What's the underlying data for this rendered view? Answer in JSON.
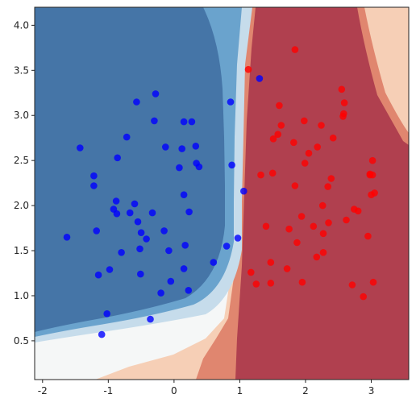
{
  "chart_data": {
    "type": "scatter",
    "title": "",
    "xlabel": "",
    "ylabel": "",
    "xlim": [
      -2.12,
      3.57
    ],
    "ylim": [
      0.07,
      4.2
    ],
    "grid": false,
    "legend": "none",
    "x_ticks": [
      "-2",
      "-1",
      "0",
      "1",
      "2",
      "3"
    ],
    "y_ticks": [
      "0.5",
      "1.0",
      "1.5",
      "2.0",
      "2.5",
      "3.0",
      "3.5",
      "4.0"
    ],
    "background": "decision-boundary contour (RdBu colormap)",
    "colors": {
      "class_0_points": "#0000ff",
      "class_1_points": "#ff0000",
      "region_class_0_strong": "#4575a7",
      "region_class_0_mid": "#6aa3cd",
      "region_class_0_light": "#c6dceb",
      "region_neutral": "#f5f7f7",
      "region_class_1_light": "#f6cfb6",
      "region_class_1_mid": "#e0866f",
      "region_class_1_strong": "#b0404f"
    },
    "series": [
      {
        "class": 0,
        "color": "#0000ff",
        "points": [
          [
            -1.43,
            2.64
          ],
          [
            -1.22,
            2.33
          ],
          [
            -1.22,
            2.22
          ],
          [
            -1.18,
            1.72
          ],
          [
            -1.15,
            1.23
          ],
          [
            -1.1,
            0.57
          ],
          [
            -1.02,
            0.8
          ],
          [
            -0.92,
            1.96
          ],
          [
            -0.88,
            2.05
          ],
          [
            -0.87,
            1.91
          ],
          [
            -0.86,
            2.53
          ],
          [
            -0.8,
            1.48
          ],
          [
            -0.72,
            2.76
          ],
          [
            -0.67,
            1.92
          ],
          [
            -0.6,
            2.02
          ],
          [
            -0.57,
            3.15
          ],
          [
            -0.55,
            1.82
          ],
          [
            -0.52,
            1.52
          ],
          [
            -0.51,
            1.24
          ],
          [
            -0.5,
            1.7
          ],
          [
            -0.42,
            1.63
          ],
          [
            -0.36,
            0.74
          ],
          [
            -0.33,
            1.92
          ],
          [
            -0.3,
            2.94
          ],
          [
            -0.28,
            3.24
          ],
          [
            -0.2,
            1.03
          ],
          [
            -0.15,
            1.72
          ],
          [
            -0.13,
            2.65
          ],
          [
            -0.08,
            1.5
          ],
          [
            -0.05,
            1.16
          ],
          [
            0.08,
            2.42
          ],
          [
            0.12,
            2.63
          ],
          [
            0.15,
            1.3
          ],
          [
            0.15,
            2.12
          ],
          [
            0.15,
            2.93
          ],
          [
            0.17,
            1.56
          ],
          [
            0.22,
            1.06
          ],
          [
            0.23,
            1.93
          ],
          [
            0.27,
            2.93
          ],
          [
            0.33,
            2.66
          ],
          [
            0.34,
            2.47
          ],
          [
            0.38,
            2.43
          ],
          [
            0.6,
            1.37
          ],
          [
            0.8,
            1.55
          ],
          [
            0.86,
            3.15
          ],
          [
            0.88,
            2.45
          ],
          [
            0.97,
            1.64
          ],
          [
            1.06,
            2.16
          ],
          [
            1.3,
            3.41
          ],
          [
            -1.63,
            1.65
          ],
          [
            -0.98,
            1.29
          ]
        ]
      },
      {
        "class": 1,
        "color": "#ff0000",
        "points": [
          [
            1.13,
            3.51
          ],
          [
            1.17,
            1.26
          ],
          [
            1.25,
            1.13
          ],
          [
            1.32,
            2.34
          ],
          [
            1.4,
            1.77
          ],
          [
            1.47,
            1.14
          ],
          [
            1.47,
            1.37
          ],
          [
            1.5,
            2.36
          ],
          [
            1.51,
            2.74
          ],
          [
            1.58,
            2.79
          ],
          [
            1.6,
            3.11
          ],
          [
            1.63,
            2.89
          ],
          [
            1.72,
            1.3
          ],
          [
            1.75,
            1.74
          ],
          [
            1.82,
            2.7
          ],
          [
            1.84,
            3.73
          ],
          [
            1.84,
            2.22
          ],
          [
            1.87,
            1.59
          ],
          [
            1.94,
            1.88
          ],
          [
            1.98,
            2.94
          ],
          [
            1.99,
            2.47
          ],
          [
            2.05,
            2.58
          ],
          [
            2.12,
            1.77
          ],
          [
            2.17,
            1.43
          ],
          [
            2.18,
            2.65
          ],
          [
            2.24,
            2.89
          ],
          [
            2.26,
            2.0
          ],
          [
            2.27,
            1.48
          ],
          [
            2.27,
            1.69
          ],
          [
            2.34,
            2.21
          ],
          [
            2.39,
            2.3
          ],
          [
            2.42,
            2.75
          ],
          [
            2.55,
            3.29
          ],
          [
            2.59,
            3.14
          ],
          [
            2.58,
            3.02
          ],
          [
            2.57,
            2.99
          ],
          [
            2.62,
            1.84
          ],
          [
            2.71,
            1.12
          ],
          [
            2.74,
            1.96
          ],
          [
            2.8,
            1.94
          ],
          [
            2.88,
            0.99
          ],
          [
            2.95,
            1.66
          ],
          [
            2.98,
            2.35
          ],
          [
            3.0,
            2.12
          ],
          [
            3.02,
            2.5
          ],
          [
            3.02,
            2.34
          ],
          [
            3.03,
            1.15
          ],
          [
            3.05,
            2.14
          ],
          [
            2.98,
            2.34
          ],
          [
            1.95,
            1.15
          ],
          [
            2.35,
            1.81
          ]
        ]
      }
    ]
  }
}
